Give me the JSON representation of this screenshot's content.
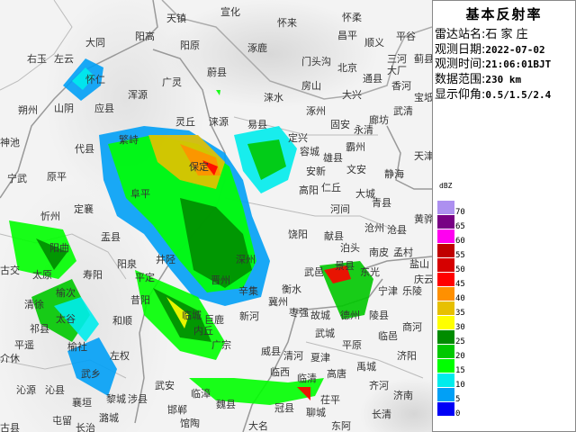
{
  "panel": {
    "title": "基本反射率",
    "station_label": "雷达站名:",
    "station": "石 家 庄",
    "date_label": "观测日期:",
    "date": "2022-07-02",
    "time_label": "观测时间:",
    "time": "21:06:01BJT",
    "range_label": "数据范围:",
    "range": "230 km",
    "elev_label": "显示仰角:",
    "elev": "0.5/1.5/2.4"
  },
  "legend": {
    "unit": "dBZ",
    "levels": [
      {
        "label": "70",
        "color": "#ad90f0"
      },
      {
        "label": "65",
        "color": "#780084"
      },
      {
        "label": "60",
        "color": "#ff00f0"
      },
      {
        "label": "55",
        "color": "#c00000"
      },
      {
        "label": "50",
        "color": "#d60000"
      },
      {
        "label": "45",
        "color": "#ff0000"
      },
      {
        "label": "40",
        "color": "#ff9000"
      },
      {
        "label": "35",
        "color": "#e7c000"
      },
      {
        "label": "30",
        "color": "#ffff00"
      },
      {
        "label": "25",
        "color": "#008c00"
      },
      {
        "label": "20",
        "color": "#00c800"
      },
      {
        "label": "15",
        "color": "#00ff00"
      },
      {
        "label": "10",
        "color": "#00ecec"
      },
      {
        "label": "5",
        "color": "#01a0f6"
      },
      {
        "label": "0",
        "color": "#0000f6"
      }
    ]
  },
  "map": {
    "cities": [
      "天镇",
      "阳高",
      "阳原",
      "大同",
      "左云",
      "右玉",
      "怀仁",
      "山阴",
      "应县",
      "浑源",
      "广灵",
      "蔚县",
      "朔州",
      "神池",
      "繁峙",
      "代县",
      "灵丘",
      "涞源",
      "宁武",
      "原平",
      "定襄",
      "忻州",
      "宣化",
      "怀来",
      "怀柔",
      "昌平",
      "顺义",
      "平谷",
      "涿鹿",
      "门头沟",
      "北京",
      "三河",
      "蓟县",
      "通县",
      "大厂",
      "房山",
      "大兴",
      "香河",
      "宝坻",
      "涞水",
      "涿州",
      "廊坊",
      "武清",
      "固安",
      "永清",
      "易县",
      "霸州",
      "定兴",
      "容城",
      "雄县",
      "天津",
      "安新",
      "文安",
      "静海",
      "高阳",
      "仁丘",
      "大城",
      "青县",
      "河间",
      "黄骅",
      "沧州",
      "沧县",
      "盂县",
      "饶阳",
      "献县",
      "泊头",
      "南皮",
      "孟村",
      "盐山",
      "东光",
      "武邑",
      "景县",
      "庆云",
      "宁津",
      "乐陵",
      "衡水",
      "故城",
      "枣强",
      "冀州",
      "德州",
      "陵县",
      "武城",
      "临邑",
      "商河",
      "平原",
      "夏津",
      "清河",
      "威县",
      "禹城",
      "高唐",
      "济阳",
      "临西",
      "临清",
      "齐河",
      "济南",
      "茌平",
      "冠县",
      "聊城",
      "长清",
      "东阿",
      "大名",
      "阳曲",
      "古交",
      "寿阳",
      "太原",
      "榆次",
      "清徐",
      "阳泉",
      "平定",
      "昔阳",
      "和顺",
      "祁县",
      "太谷",
      "平遥",
      "介休",
      "榆社",
      "左权",
      "武乡",
      "沁源",
      "沁县",
      "襄垣",
      "黎城",
      "涉县",
      "武安",
      "邯郸",
      "屯留",
      "潞城",
      "长治",
      "古县",
      "井陉",
      "临城",
      "内丘",
      "深州",
      "辛集",
      "晋州",
      "阜平",
      "保定",
      "新河",
      "巨鹿",
      "广宗",
      "临漳",
      "魏县",
      "馆陶"
    ]
  }
}
